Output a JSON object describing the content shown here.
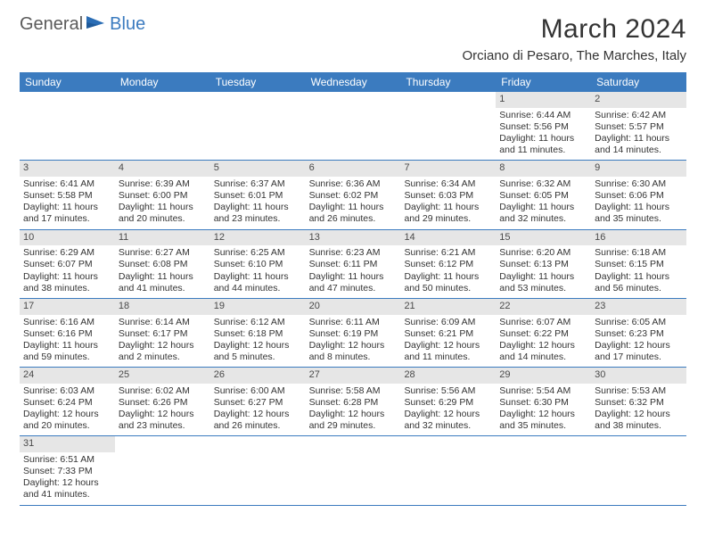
{
  "logo": {
    "part1": "General",
    "part2": "Blue"
  },
  "title": "March 2024",
  "location": "Orciano di Pesaro, The Marches, Italy",
  "day_headers": [
    "Sunday",
    "Monday",
    "Tuesday",
    "Wednesday",
    "Thursday",
    "Friday",
    "Saturday"
  ],
  "colors": {
    "header_bg": "#3b7bbf",
    "daynum_bg": "#e6e6e6",
    "row_border": "#3b7bbf"
  },
  "weeks": [
    [
      null,
      null,
      null,
      null,
      null,
      {
        "n": "1",
        "sr": "Sunrise: 6:44 AM",
        "ss": "Sunset: 5:56 PM",
        "dl": "Daylight: 11 hours and 11 minutes."
      },
      {
        "n": "2",
        "sr": "Sunrise: 6:42 AM",
        "ss": "Sunset: 5:57 PM",
        "dl": "Daylight: 11 hours and 14 minutes."
      }
    ],
    [
      {
        "n": "3",
        "sr": "Sunrise: 6:41 AM",
        "ss": "Sunset: 5:58 PM",
        "dl": "Daylight: 11 hours and 17 minutes."
      },
      {
        "n": "4",
        "sr": "Sunrise: 6:39 AM",
        "ss": "Sunset: 6:00 PM",
        "dl": "Daylight: 11 hours and 20 minutes."
      },
      {
        "n": "5",
        "sr": "Sunrise: 6:37 AM",
        "ss": "Sunset: 6:01 PM",
        "dl": "Daylight: 11 hours and 23 minutes."
      },
      {
        "n": "6",
        "sr": "Sunrise: 6:36 AM",
        "ss": "Sunset: 6:02 PM",
        "dl": "Daylight: 11 hours and 26 minutes."
      },
      {
        "n": "7",
        "sr": "Sunrise: 6:34 AM",
        "ss": "Sunset: 6:03 PM",
        "dl": "Daylight: 11 hours and 29 minutes."
      },
      {
        "n": "8",
        "sr": "Sunrise: 6:32 AM",
        "ss": "Sunset: 6:05 PM",
        "dl": "Daylight: 11 hours and 32 minutes."
      },
      {
        "n": "9",
        "sr": "Sunrise: 6:30 AM",
        "ss": "Sunset: 6:06 PM",
        "dl": "Daylight: 11 hours and 35 minutes."
      }
    ],
    [
      {
        "n": "10",
        "sr": "Sunrise: 6:29 AM",
        "ss": "Sunset: 6:07 PM",
        "dl": "Daylight: 11 hours and 38 minutes."
      },
      {
        "n": "11",
        "sr": "Sunrise: 6:27 AM",
        "ss": "Sunset: 6:08 PM",
        "dl": "Daylight: 11 hours and 41 minutes."
      },
      {
        "n": "12",
        "sr": "Sunrise: 6:25 AM",
        "ss": "Sunset: 6:10 PM",
        "dl": "Daylight: 11 hours and 44 minutes."
      },
      {
        "n": "13",
        "sr": "Sunrise: 6:23 AM",
        "ss": "Sunset: 6:11 PM",
        "dl": "Daylight: 11 hours and 47 minutes."
      },
      {
        "n": "14",
        "sr": "Sunrise: 6:21 AM",
        "ss": "Sunset: 6:12 PM",
        "dl": "Daylight: 11 hours and 50 minutes."
      },
      {
        "n": "15",
        "sr": "Sunrise: 6:20 AM",
        "ss": "Sunset: 6:13 PM",
        "dl": "Daylight: 11 hours and 53 minutes."
      },
      {
        "n": "16",
        "sr": "Sunrise: 6:18 AM",
        "ss": "Sunset: 6:15 PM",
        "dl": "Daylight: 11 hours and 56 minutes."
      }
    ],
    [
      {
        "n": "17",
        "sr": "Sunrise: 6:16 AM",
        "ss": "Sunset: 6:16 PM",
        "dl": "Daylight: 11 hours and 59 minutes."
      },
      {
        "n": "18",
        "sr": "Sunrise: 6:14 AM",
        "ss": "Sunset: 6:17 PM",
        "dl": "Daylight: 12 hours and 2 minutes."
      },
      {
        "n": "19",
        "sr": "Sunrise: 6:12 AM",
        "ss": "Sunset: 6:18 PM",
        "dl": "Daylight: 12 hours and 5 minutes."
      },
      {
        "n": "20",
        "sr": "Sunrise: 6:11 AM",
        "ss": "Sunset: 6:19 PM",
        "dl": "Daylight: 12 hours and 8 minutes."
      },
      {
        "n": "21",
        "sr": "Sunrise: 6:09 AM",
        "ss": "Sunset: 6:21 PM",
        "dl": "Daylight: 12 hours and 11 minutes."
      },
      {
        "n": "22",
        "sr": "Sunrise: 6:07 AM",
        "ss": "Sunset: 6:22 PM",
        "dl": "Daylight: 12 hours and 14 minutes."
      },
      {
        "n": "23",
        "sr": "Sunrise: 6:05 AM",
        "ss": "Sunset: 6:23 PM",
        "dl": "Daylight: 12 hours and 17 minutes."
      }
    ],
    [
      {
        "n": "24",
        "sr": "Sunrise: 6:03 AM",
        "ss": "Sunset: 6:24 PM",
        "dl": "Daylight: 12 hours and 20 minutes."
      },
      {
        "n": "25",
        "sr": "Sunrise: 6:02 AM",
        "ss": "Sunset: 6:26 PM",
        "dl": "Daylight: 12 hours and 23 minutes."
      },
      {
        "n": "26",
        "sr": "Sunrise: 6:00 AM",
        "ss": "Sunset: 6:27 PM",
        "dl": "Daylight: 12 hours and 26 minutes."
      },
      {
        "n": "27",
        "sr": "Sunrise: 5:58 AM",
        "ss": "Sunset: 6:28 PM",
        "dl": "Daylight: 12 hours and 29 minutes."
      },
      {
        "n": "28",
        "sr": "Sunrise: 5:56 AM",
        "ss": "Sunset: 6:29 PM",
        "dl": "Daylight: 12 hours and 32 minutes."
      },
      {
        "n": "29",
        "sr": "Sunrise: 5:54 AM",
        "ss": "Sunset: 6:30 PM",
        "dl": "Daylight: 12 hours and 35 minutes."
      },
      {
        "n": "30",
        "sr": "Sunrise: 5:53 AM",
        "ss": "Sunset: 6:32 PM",
        "dl": "Daylight: 12 hours and 38 minutes."
      }
    ],
    [
      {
        "n": "31",
        "sr": "Sunrise: 6:51 AM",
        "ss": "Sunset: 7:33 PM",
        "dl": "Daylight: 12 hours and 41 minutes."
      },
      null,
      null,
      null,
      null,
      null,
      null
    ]
  ]
}
